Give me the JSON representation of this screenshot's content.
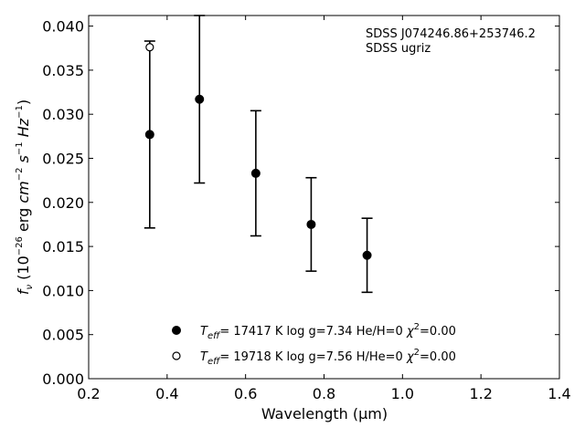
{
  "chart_data": {
    "type": "scatter",
    "title": "",
    "xlabel": "Wavelength (μm)",
    "xlim": [
      0.2,
      1.4
    ],
    "ylim": [
      0.0,
      0.0412
    ],
    "x_ticks": [
      0.2,
      0.4,
      0.6,
      0.8,
      1.0,
      1.2,
      1.4
    ],
    "x_tick_labels": [
      "0.2",
      "0.4",
      "0.6",
      "0.8",
      "1.0",
      "1.2",
      "1.4"
    ],
    "y_ticks": [
      0.0,
      0.005,
      0.01,
      0.015,
      0.02,
      0.025,
      0.03,
      0.035,
      0.04
    ],
    "y_tick_labels": [
      "0.000",
      "0.005",
      "0.010",
      "0.015",
      "0.020",
      "0.025",
      "0.030",
      "0.035",
      "0.040"
    ],
    "grid": false,
    "legend_position": "bottom-center",
    "annotation": {
      "line1": "SDSS J074246.86+253746.2",
      "line2": "SDSS ugriz"
    },
    "series": [
      {
        "marker": "filled-circle",
        "x": [
          0.3557,
          0.4825,
          0.6261,
          0.7672,
          0.9097
        ],
        "y": [
          0.0277,
          0.0317,
          0.0233,
          0.0175,
          0.014
        ],
        "yerr": [
          0.0106,
          0.0095,
          0.0071,
          0.0053,
          0.0042
        ]
      },
      {
        "marker": "open-circle",
        "x": [
          0.3557
        ],
        "y": [
          0.0376
        ]
      }
    ],
    "legend": [
      {
        "teff": "17417",
        "logg": "7.34",
        "comp": "He/H=0",
        "chi2": "0.00"
      },
      {
        "teff": "19718",
        "logg": "7.56",
        "comp": "H/He=0",
        "chi2": "0.00"
      }
    ]
  }
}
